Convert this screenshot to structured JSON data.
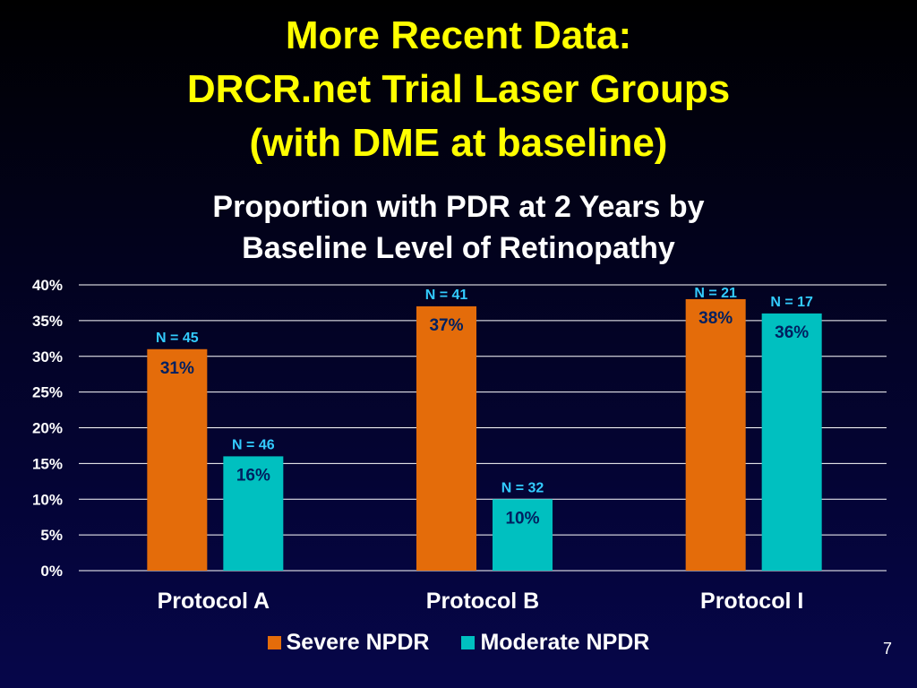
{
  "slide": {
    "title_lines": [
      "More Recent Data:",
      "DRCR.net Trial Laser Groups",
      "(with DME at baseline)"
    ],
    "page_number": "7"
  },
  "chart_data": {
    "type": "bar",
    "title_lines": [
      "Proportion with PDR at 2 Years by",
      "Baseline Level of Retinopathy"
    ],
    "categories": [
      "Protocol A",
      "Protocol B",
      "Protocol I"
    ],
    "series": [
      {
        "name": "Severe NPDR",
        "color": "#e46c0a",
        "values": [
          31,
          37,
          38
        ],
        "data_labels": [
          "31%",
          "37%",
          "38%"
        ],
        "n_labels": [
          "N = 45",
          "N = 41",
          "N = 21"
        ]
      },
      {
        "name": "Moderate NPDR",
        "color": "#00c0c0",
        "values": [
          16,
          10,
          36
        ],
        "data_labels": [
          "16%",
          "10%",
          "36%"
        ],
        "n_labels": [
          "N = 46",
          "N = 32",
          "N = 17"
        ]
      }
    ],
    "ylim": [
      0,
      40
    ],
    "yticks": [
      0,
      5,
      10,
      15,
      20,
      25,
      30,
      35,
      40
    ],
    "ytick_labels": [
      "0%",
      "5%",
      "10%",
      "15%",
      "20%",
      "25%",
      "30%",
      "35%",
      "40%"
    ],
    "grid": true,
    "legend_position": "bottom",
    "colors": {
      "title": "#ffff00",
      "text": "#ffffff",
      "data_label": "#002060",
      "n_label": "#33ccff",
      "grid": "#ffffff"
    }
  }
}
